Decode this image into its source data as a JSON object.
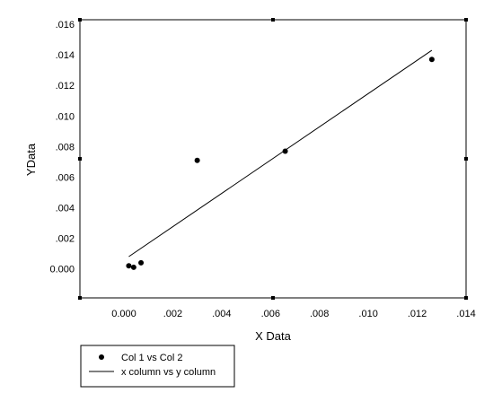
{
  "chart_data": {
    "type": "scatter",
    "title": "",
    "xlabel": "X Data",
    "ylabel": "YData",
    "xlim": [
      -0.0018,
      0.014
    ],
    "ylim": [
      -0.0019,
      0.0163
    ],
    "x_ticks": [
      {
        "value": 0.0,
        "label": "0.000"
      },
      {
        "value": 0.002,
        "label": ".002"
      },
      {
        "value": 0.004,
        "label": ".004"
      },
      {
        "value": 0.006,
        "label": ".006"
      },
      {
        "value": 0.008,
        "label": ".008"
      },
      {
        "value": 0.01,
        "label": ".010"
      },
      {
        "value": 0.012,
        "label": ".012"
      },
      {
        "value": 0.014,
        "label": ".014"
      }
    ],
    "y_ticks": [
      {
        "value": 0.0,
        "label": "0.000"
      },
      {
        "value": 0.002,
        "label": ".002"
      },
      {
        "value": 0.004,
        "label": ".004"
      },
      {
        "value": 0.006,
        "label": ".006"
      },
      {
        "value": 0.008,
        "label": ".008"
      },
      {
        "value": 0.01,
        "label": ".010"
      },
      {
        "value": 0.012,
        "label": ".012"
      },
      {
        "value": 0.014,
        "label": ".014"
      },
      {
        "value": 0.016,
        "label": ".016"
      }
    ],
    "grid": false,
    "legend_position": "bottom-left",
    "series": [
      {
        "name": "Col 1 vs Col 2",
        "type": "scatter",
        "color": "#000000",
        "points": [
          {
            "x": 0.0002,
            "y": 0.0002
          },
          {
            "x": 0.0004,
            "y": 0.0001
          },
          {
            "x": 0.0007,
            "y": 0.0004
          },
          {
            "x": 0.003,
            "y": 0.0071
          },
          {
            "x": 0.0066,
            "y": 0.0077
          },
          {
            "x": 0.0126,
            "y": 0.0137
          }
        ]
      },
      {
        "name": "x column vs y column",
        "type": "line",
        "color": "#000000",
        "points": [
          {
            "x": 0.0002,
            "y": 0.0008
          },
          {
            "x": 0.0126,
            "y": 0.0143
          }
        ]
      }
    ]
  }
}
